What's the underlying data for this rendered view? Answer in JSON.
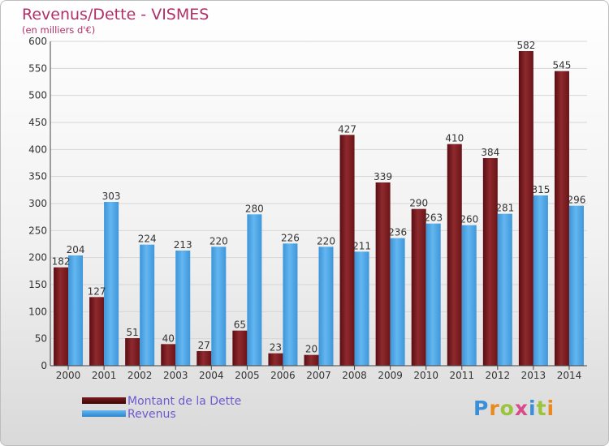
{
  "title": "Revenus/Dette - VISMES",
  "subtitle": "(en milliers d'€)",
  "logo": {
    "text": "Proxiti"
  },
  "colors": {
    "dette": "#7a1a1e",
    "revenus": "#4aa3e6",
    "title": "#b0306a",
    "legend": "#6b5bd0"
  },
  "chart_data": {
    "type": "bar",
    "categories": [
      "2000",
      "2001",
      "2002",
      "2003",
      "2004",
      "2005",
      "2006",
      "2007",
      "2008",
      "2009",
      "2010",
      "2011",
      "2012",
      "2013",
      "2014"
    ],
    "series": [
      {
        "name": "Montant de la Dette",
        "values": [
          182,
          127,
          51,
          40,
          27,
          65,
          23,
          20,
          427,
          339,
          290,
          410,
          384,
          582,
          545
        ]
      },
      {
        "name": "Revenus",
        "values": [
          204,
          303,
          224,
          213,
          220,
          280,
          226,
          220,
          211,
          236,
          263,
          260,
          281,
          315,
          296
        ]
      }
    ],
    "ylim": [
      0,
      600
    ],
    "yticks": [
      0,
      50,
      100,
      150,
      200,
      250,
      300,
      350,
      400,
      450,
      500,
      550,
      600
    ],
    "grid": true,
    "legend": "bottom-left"
  }
}
